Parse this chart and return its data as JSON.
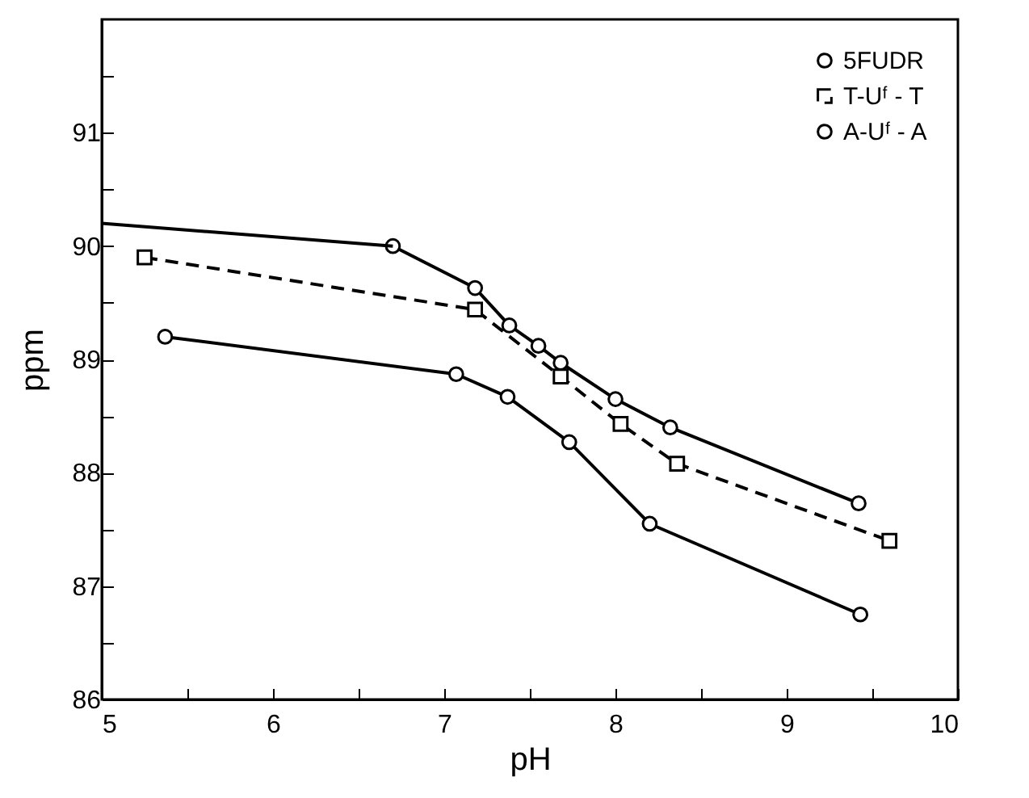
{
  "chart_data": {
    "type": "line",
    "xlabel": "pH",
    "ylabel": "ppm",
    "xlim": [
      5,
      10
    ],
    "ylim": [
      86,
      92
    ],
    "xticks": [
      5,
      {
        "value": 5.5,
        "label": null
      },
      6,
      {
        "value": 6.5,
        "label": null
      },
      7,
      {
        "value": 7.5,
        "label": null
      },
      8,
      {
        "value": 8.5,
        "label": null
      },
      9,
      {
        "value": 9.5,
        "label": null
      },
      10
    ],
    "yticks": [
      86,
      {
        "value": 86.5,
        "label": null
      },
      87,
      {
        "value": 87.5,
        "label": null
      },
      88,
      {
        "value": 88.5,
        "label": null
      },
      89,
      {
        "value": 89.5,
        "label": null
      },
      90,
      {
        "value": 90.5,
        "label": null
      },
      91,
      {
        "value": 91.5,
        "label": null
      }
    ],
    "grid": false,
    "legend": "top right",
    "series": [
      {
        "name": "5FUDR",
        "color": "#000000",
        "marker": "circle",
        "line_style": "solid",
        "x": [
          6.7,
          7.18,
          7.38,
          7.55,
          7.68,
          8.0,
          8.32,
          9.42
        ],
        "values": [
          90.0,
          89.63,
          89.3,
          89.12,
          88.97,
          88.65,
          88.4,
          87.73
        ]
      },
      {
        "name": "T-Uᶠ - T",
        "color": "#000000",
        "marker": "square",
        "line_style": "dashed",
        "x": [
          5.25,
          7.18,
          7.68,
          8.03,
          8.36,
          9.6
        ],
        "values": [
          89.9,
          89.44,
          88.85,
          88.43,
          88.08,
          87.4
        ]
      },
      {
        "name": "A-Uᶠ - A",
        "color": "#000000",
        "marker": "circle",
        "line_style": "solid",
        "x": [
          5.37,
          7.07,
          7.37,
          7.73,
          8.2,
          9.43
        ],
        "values": [
          89.2,
          88.87,
          88.67,
          88.27,
          87.55,
          86.75
        ]
      },
      {
        "color": "#000000",
        "marker": "none",
        "line_style": "solid",
        "x": [
          5.0,
          6.7
        ],
        "values": [
          90.2,
          90.0
        ]
      }
    ]
  }
}
